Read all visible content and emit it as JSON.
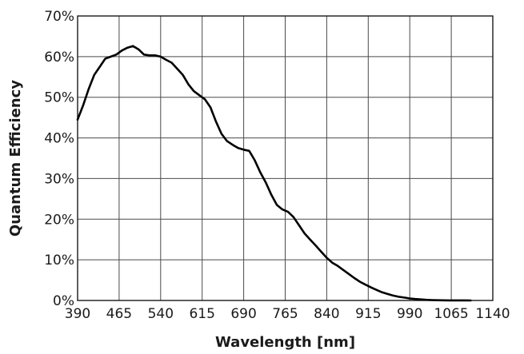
{
  "chart_data": {
    "type": "line",
    "xlabel": "Wavelength [nm]",
    "ylabel": "Quantum Efficiency",
    "xlim": [
      390,
      1140
    ],
    "ylim": [
      0,
      70
    ],
    "x_ticks": [
      390,
      465,
      540,
      615,
      690,
      765,
      840,
      915,
      990,
      1065,
      1140
    ],
    "x_tick_labels": [
      "390",
      "465",
      "540",
      "615",
      "690",
      "765",
      "840",
      "915",
      "990",
      "1065",
      "1140"
    ],
    "y_ticks": [
      0,
      10,
      20,
      30,
      40,
      50,
      60,
      70
    ],
    "y_tick_labels": [
      "0%",
      "10%",
      "20%",
      "30%",
      "40%",
      "50%",
      "60%",
      "70%"
    ],
    "grid": true,
    "series": [
      {
        "color": "#000000",
        "x": [
          390,
          400,
          410,
          420,
          430,
          440,
          450,
          460,
          470,
          480,
          490,
          500,
          510,
          520,
          530,
          540,
          550,
          560,
          570,
          580,
          590,
          600,
          610,
          620,
          630,
          640,
          650,
          660,
          670,
          680,
          690,
          700,
          710,
          720,
          730,
          740,
          750,
          760,
          770,
          780,
          790,
          800,
          810,
          820,
          830,
          840,
          850,
          860,
          870,
          880,
          890,
          900,
          910,
          920,
          930,
          940,
          950,
          960,
          970,
          980,
          990,
          1000,
          1010,
          1020,
          1030,
          1040,
          1050,
          1060,
          1070,
          1080,
          1090,
          1100
        ],
        "y": [
          44.5,
          48.0,
          52.0,
          55.5,
          57.5,
          59.5,
          60.0,
          60.5,
          61.5,
          62.2,
          62.6,
          61.8,
          60.5,
          60.3,
          60.3,
          60.0,
          59.2,
          58.5,
          57.0,
          55.5,
          53.2,
          51.5,
          50.5,
          49.5,
          47.5,
          44.0,
          41.0,
          39.2,
          38.3,
          37.5,
          37.1,
          36.8,
          34.5,
          31.5,
          29.0,
          26.0,
          23.5,
          22.4,
          21.8,
          20.5,
          18.5,
          16.5,
          15.0,
          13.5,
          12.0,
          10.5,
          9.3,
          8.5,
          7.5,
          6.5,
          5.5,
          4.6,
          3.9,
          3.2,
          2.6,
          2.0,
          1.6,
          1.2,
          0.9,
          0.7,
          0.5,
          0.35,
          0.25,
          0.15,
          0.1,
          0.05,
          0.03,
          0.02,
          0.02,
          0.02,
          0.02,
          0.0
        ]
      }
    ]
  }
}
